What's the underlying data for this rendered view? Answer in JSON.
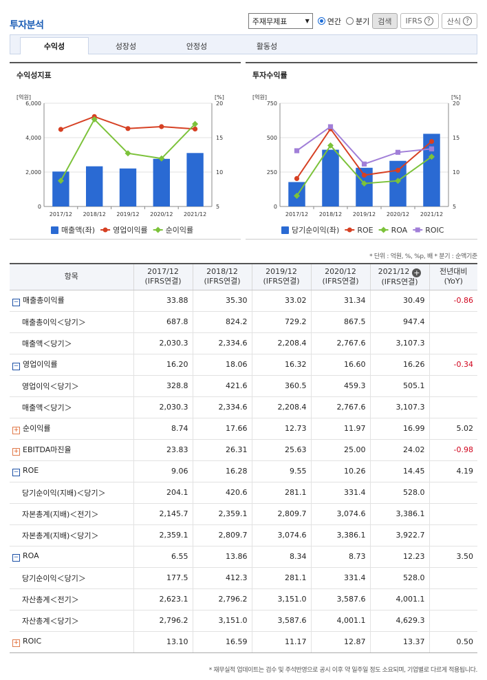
{
  "page_title": "투자분석",
  "controls": {
    "statement_select": "주재무제표",
    "radio_annual": "연간",
    "radio_quarter": "분기",
    "search_label": "검색",
    "ifrs_label": "IFRS",
    "formula_label": "산식",
    "help_symbol": "?"
  },
  "tabs": [
    {
      "label": "수익성",
      "active": true
    },
    {
      "label": "성장성",
      "active": false
    },
    {
      "label": "안정성",
      "active": false
    },
    {
      "label": "활동성",
      "active": false
    }
  ],
  "notes": "* 단위 : 억원, %, %p, 배    * 분기 : 순액기준",
  "chart_data": [
    {
      "type": "bar",
      "title": "수익성지표",
      "categories": [
        "2017/12",
        "2018/12",
        "2019/12",
        "2020/12",
        "2021/12"
      ],
      "y_left_label": "[억원]",
      "y_right_label": "[%]",
      "y_left_range": [
        0,
        6000
      ],
      "y_left_ticks": [
        "6,000",
        "4,000",
        "2,000",
        "0"
      ],
      "y_right_range": [
        5,
        20
      ],
      "y_right_ticks": [
        "20",
        "15",
        "10",
        "5"
      ],
      "bar_series": {
        "name": "매출액(좌)",
        "axis": "left",
        "color": "#2a6ad3",
        "values": [
          2030.3,
          2334.6,
          2208.4,
          2767.6,
          3107.3
        ]
      },
      "line_series": [
        {
          "name": "영업이익률",
          "axis": "right",
          "color": "#d64023",
          "marker": "circle",
          "values": [
            16.2,
            18.06,
            16.32,
            16.6,
            16.26
          ]
        },
        {
          "name": "순이익률",
          "axis": "right",
          "color": "#7cc23a",
          "marker": "diamond",
          "values": [
            8.74,
            17.66,
            12.73,
            11.97,
            16.99
          ]
        }
      ],
      "grid": true,
      "legend": "bottom"
    },
    {
      "type": "bar",
      "title": "투자수익률",
      "categories": [
        "2017/12",
        "2018/12",
        "2019/12",
        "2020/12",
        "2021/12"
      ],
      "y_left_label": "[억원]",
      "y_right_label": "[%]",
      "y_left_range": [
        0,
        750
      ],
      "y_left_ticks": [
        "750",
        "500",
        "250",
        "0"
      ],
      "y_right_range": [
        5,
        20
      ],
      "y_right_ticks": [
        "20",
        "15",
        "10",
        "5"
      ],
      "bar_series": {
        "name": "당기순이익(좌)",
        "axis": "left",
        "color": "#2a6ad3",
        "values": [
          177.5,
          412.3,
          281.1,
          331.4,
          528.0
        ]
      },
      "line_series": [
        {
          "name": "ROE",
          "axis": "right",
          "color": "#d64023",
          "marker": "circle",
          "values": [
            9.06,
            16.28,
            9.55,
            10.26,
            14.45
          ]
        },
        {
          "name": "ROA",
          "axis": "right",
          "color": "#7cc23a",
          "marker": "diamond",
          "values": [
            6.55,
            13.86,
            8.34,
            8.73,
            12.23
          ]
        },
        {
          "name": "ROIC",
          "axis": "right",
          "color": "#a17fd8",
          "marker": "square",
          "values": [
            13.1,
            16.59,
            11.17,
            12.87,
            13.37
          ]
        }
      ],
      "grid": true,
      "legend": "bottom"
    }
  ],
  "table": {
    "headers": [
      {
        "line1": "항목",
        "line2": ""
      },
      {
        "line1": "2017/12",
        "line2": "(IFRS연결)"
      },
      {
        "line1": "2018/12",
        "line2": "(IFRS연결)"
      },
      {
        "line1": "2019/12",
        "line2": "(IFRS연결)"
      },
      {
        "line1": "2020/12",
        "line2": "(IFRS연결)"
      },
      {
        "line1": "2021/12",
        "line2": "(IFRS연결)"
      },
      {
        "line1": "전년대비",
        "line2": "(YoY)"
      }
    ],
    "rows": [
      {
        "label": "매출총이익률",
        "toggle": "minus",
        "sub": false,
        "values": [
          "33.88",
          "35.30",
          "33.02",
          "31.34",
          "30.49"
        ],
        "yoy": "-0.86",
        "neg": true
      },
      {
        "label": "매출총이익＜당기＞",
        "toggle": "",
        "sub": true,
        "values": [
          "687.8",
          "824.2",
          "729.2",
          "867.5",
          "947.4"
        ],
        "yoy": "",
        "neg": false
      },
      {
        "label": "매출액＜당기＞",
        "toggle": "",
        "sub": true,
        "values": [
          "2,030.3",
          "2,334.6",
          "2,208.4",
          "2,767.6",
          "3,107.3"
        ],
        "yoy": "",
        "neg": false
      },
      {
        "label": "영업이익률",
        "toggle": "minus",
        "sub": false,
        "values": [
          "16.20",
          "18.06",
          "16.32",
          "16.60",
          "16.26"
        ],
        "yoy": "-0.34",
        "neg": true
      },
      {
        "label": "영업이익＜당기＞",
        "toggle": "",
        "sub": true,
        "values": [
          "328.8",
          "421.6",
          "360.5",
          "459.3",
          "505.1"
        ],
        "yoy": "",
        "neg": false
      },
      {
        "label": "매출액＜당기＞",
        "toggle": "",
        "sub": true,
        "values": [
          "2,030.3",
          "2,334.6",
          "2,208.4",
          "2,767.6",
          "3,107.3"
        ],
        "yoy": "",
        "neg": false
      },
      {
        "label": "순이익률",
        "toggle": "plus",
        "sub": false,
        "values": [
          "8.74",
          "17.66",
          "12.73",
          "11.97",
          "16.99"
        ],
        "yoy": "5.02",
        "neg": false
      },
      {
        "label": "EBITDA마진율",
        "toggle": "plus",
        "sub": false,
        "values": [
          "23.83",
          "26.31",
          "25.63",
          "25.00",
          "24.02"
        ],
        "yoy": "-0.98",
        "neg": true
      },
      {
        "label": "ROE",
        "toggle": "minus",
        "sub": false,
        "values": [
          "9.06",
          "16.28",
          "9.55",
          "10.26",
          "14.45"
        ],
        "yoy": "4.19",
        "neg": false
      },
      {
        "label": "당기순이익(지배)＜당기＞",
        "toggle": "",
        "sub": true,
        "values": [
          "204.1",
          "420.6",
          "281.1",
          "331.4",
          "528.0"
        ],
        "yoy": "",
        "neg": false
      },
      {
        "label": "자본총계(지배)＜전기＞",
        "toggle": "",
        "sub": true,
        "values": [
          "2,145.7",
          "2,359.1",
          "2,809.7",
          "3,074.6",
          "3,386.1"
        ],
        "yoy": "",
        "neg": false
      },
      {
        "label": "자본총계(지배)＜당기＞",
        "toggle": "",
        "sub": true,
        "values": [
          "2,359.1",
          "2,809.7",
          "3,074.6",
          "3,386.1",
          "3,922.7"
        ],
        "yoy": "",
        "neg": false
      },
      {
        "label": "ROA",
        "toggle": "minus",
        "sub": false,
        "values": [
          "6.55",
          "13.86",
          "8.34",
          "8.73",
          "12.23"
        ],
        "yoy": "3.50",
        "neg": false
      },
      {
        "label": "당기순이익＜당기＞",
        "toggle": "",
        "sub": true,
        "values": [
          "177.5",
          "412.3",
          "281.1",
          "331.4",
          "528.0"
        ],
        "yoy": "",
        "neg": false
      },
      {
        "label": "자산총계＜전기＞",
        "toggle": "",
        "sub": true,
        "values": [
          "2,623.1",
          "2,796.2",
          "3,151.0",
          "3,587.6",
          "4,001.1"
        ],
        "yoy": "",
        "neg": false
      },
      {
        "label": "자산총계＜당기＞",
        "toggle": "",
        "sub": true,
        "values": [
          "2,796.2",
          "3,151.0",
          "3,587.6",
          "4,001.1",
          "4,629.3"
        ],
        "yoy": "",
        "neg": false
      },
      {
        "label": "ROIC",
        "toggle": "plus",
        "sub": false,
        "values": [
          "13.10",
          "16.59",
          "11.17",
          "12.87",
          "13.37"
        ],
        "yoy": "0.50",
        "neg": false
      }
    ]
  },
  "footnote": "* 재무실적 업데이트는 검수 및 주석반영으로 공시 이후 약 일주일 정도 소요되며, 기업별로 다르게 적용됩니다."
}
